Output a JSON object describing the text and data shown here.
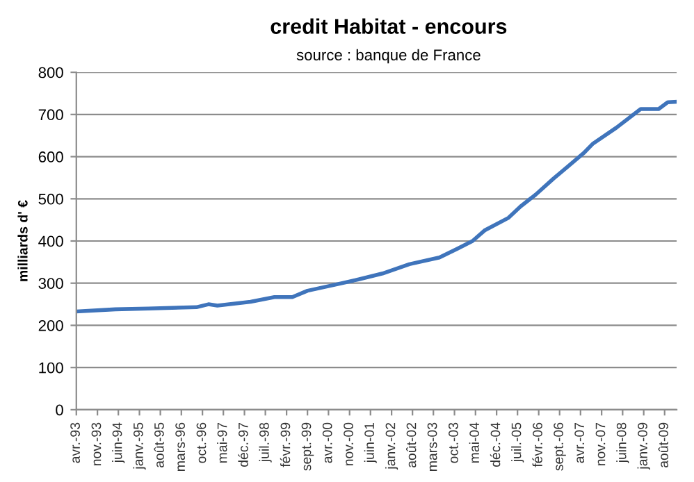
{
  "chart_data": {
    "type": "line",
    "title": "credit Habitat - encours",
    "subtitle": "source : banque de France",
    "ylabel": "milliards d' €",
    "x": [
      "1993-04",
      "1994-05",
      "1995-04",
      "1996-08",
      "1996-12",
      "1997-03",
      "1998-02",
      "1998-10",
      "1999-04",
      "1999-09",
      "2000-06",
      "2001-02",
      "2001-10",
      "2002-07",
      "2003-05",
      "2003-11",
      "2004-04",
      "2004-08",
      "2005-04",
      "2005-08",
      "2006-01",
      "2006-07",
      "2006-12",
      "2007-05",
      "2007-08",
      "2008-04",
      "2008-12",
      "2009-06",
      "2009-09",
      "2009-12"
    ],
    "series": [
      {
        "color": "#3f74bb",
        "values": [
          233,
          238,
          240,
          243,
          250,
          247,
          256,
          267,
          267,
          282,
          296,
          309,
          323,
          345,
          361,
          382,
          400,
          425,
          455,
          482,
          510,
          548,
          578,
          608,
          630,
          669,
          713,
          713,
          729,
          730
        ]
      }
    ],
    "xlim": [
      "1993-04",
      "2009-12"
    ],
    "xticks": [
      {
        "value": "1993-04",
        "label": "avr.-93"
      },
      {
        "value": "1993-11",
        "label": "nov.-93"
      },
      {
        "value": "1994-06",
        "label": "juin-94"
      },
      {
        "value": "1995-01",
        "label": "janv.-95"
      },
      {
        "value": "1995-08",
        "label": "août-95"
      },
      {
        "value": "1996-03",
        "label": "mars-96"
      },
      {
        "value": "1996-10",
        "label": "oct.-96"
      },
      {
        "value": "1997-05",
        "label": "mai-97"
      },
      {
        "value": "1997-12",
        "label": "déc.-97"
      },
      {
        "value": "1998-07",
        "label": "juil.-98"
      },
      {
        "value": "1999-02",
        "label": "févr.-99"
      },
      {
        "value": "1999-09",
        "label": "sept.-99"
      },
      {
        "value": "2000-04",
        "label": "avr.-00"
      },
      {
        "value": "2000-11",
        "label": "nov.-00"
      },
      {
        "value": "2001-06",
        "label": "juin-01"
      },
      {
        "value": "2002-01",
        "label": "janv.-02"
      },
      {
        "value": "2002-08",
        "label": "août-02"
      },
      {
        "value": "2003-03",
        "label": "mars-03"
      },
      {
        "value": "2003-10",
        "label": "oct.-03"
      },
      {
        "value": "2004-05",
        "label": "mai-04"
      },
      {
        "value": "2004-12",
        "label": "déc.-04"
      },
      {
        "value": "2005-07",
        "label": "juil.-05"
      },
      {
        "value": "2006-02",
        "label": "févr.-06"
      },
      {
        "value": "2006-09",
        "label": "sept.-06"
      },
      {
        "value": "2007-04",
        "label": "avr.-07"
      },
      {
        "value": "2007-11",
        "label": "nov.-07"
      },
      {
        "value": "2008-06",
        "label": "juin-08"
      },
      {
        "value": "2009-01",
        "label": "janv.-09"
      },
      {
        "value": "2009-08",
        "label": "août-09"
      }
    ],
    "ylim": [
      0,
      800
    ],
    "yticks": [
      0,
      100,
      200,
      300,
      400,
      500,
      600,
      700,
      800
    ],
    "grid": "y",
    "line_style": "solid"
  }
}
